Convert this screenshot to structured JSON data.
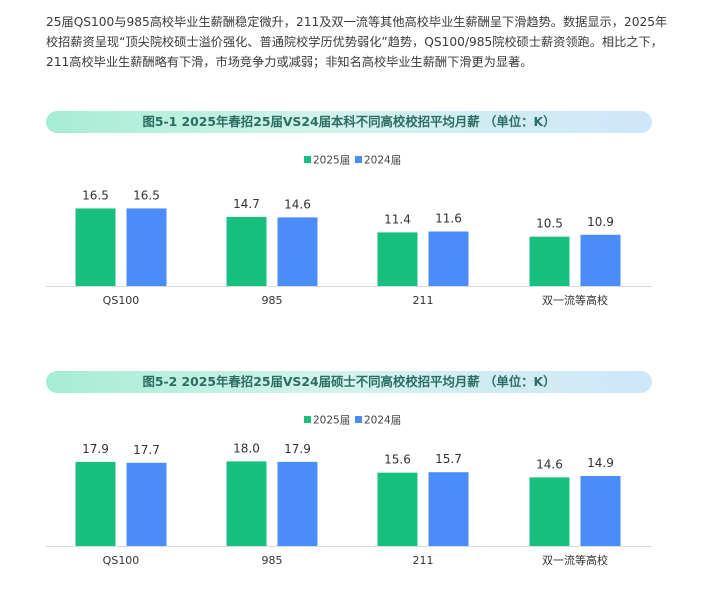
{
  "intro_text": "25届QS100与985高校毕业生薪酬稳定微升，211及双一流等其他高校毕业生薪酬呈下滑趋势。数据显示，2025年校招薪资呈现“顶尖院校硕士溢价强化、普通院校学历优势弱化”趋势，QS100/985院校硕士薪资领跑。相比之下，211高校毕业生薪酬略有下滑，市场竞争力或减弱；非知名高校毕业生薪酬下滑更为显著。",
  "colors": {
    "2025": "#17c07f",
    "2024": "#4b8df8"
  },
  "chart_data": [
    {
      "type": "bar",
      "title": "图5-1 2025年春招25届VS24届本科不同高校校招平均月薪 （单位：K）",
      "categories": [
        "QS100",
        "985",
        "211",
        "双一流等高校"
      ],
      "series": [
        {
          "name": "2025届",
          "values": [
            16.5,
            14.7,
            11.4,
            10.5
          ]
        },
        {
          "name": "2024届",
          "values": [
            16.5,
            14.6,
            11.6,
            10.9
          ]
        }
      ],
      "value_labels": [
        [
          "16.5",
          "14.7",
          "11.4",
          "10.5"
        ],
        [
          "16.5",
          "14.6",
          "11.6",
          "10.9"
        ]
      ],
      "ylim": [
        0,
        20
      ],
      "grid": false,
      "legend": "top-center"
    },
    {
      "type": "bar",
      "title": "图5-2 2025年春招25届VS24届硕士不同高校校招平均月薪 （单位：K）",
      "categories": [
        "QS100",
        "985",
        "211",
        "双一流等高校"
      ],
      "series": [
        {
          "name": "2025届",
          "values": [
            17.9,
            18.0,
            15.6,
            14.6
          ]
        },
        {
          "name": "2024届",
          "values": [
            17.7,
            17.9,
            15.7,
            14.9
          ]
        }
      ],
      "value_labels": [
        [
          "17.9",
          "18.0",
          "15.6",
          "14.6"
        ],
        [
          "17.7",
          "17.9",
          "15.7",
          "14.9"
        ]
      ],
      "ylim": [
        0,
        20
      ],
      "grid": false,
      "legend": "top-center"
    }
  ]
}
